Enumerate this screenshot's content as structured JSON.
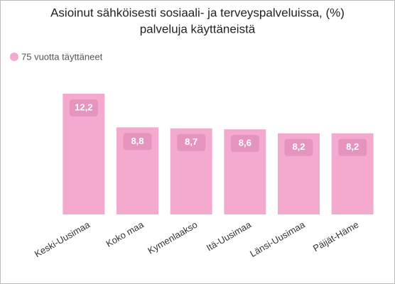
{
  "chart_data": {
    "type": "bar",
    "title": [
      "Asioinut sähköisesti sosiaali- ja terveyspalveluissa, (%)",
      "palveluja käyttäneistä"
    ],
    "categories": [
      "Keski-Uusimaa",
      "Koko maa",
      "Kymenlaakso",
      "Itä-Uusimaa",
      "Länsi-Uusimaa",
      "Päijät-Häme"
    ],
    "series": [
      {
        "name": "75 vuotta täyttäneet",
        "color": "#f4a9cf",
        "values": [
          12.2,
          8.8,
          8.7,
          8.6,
          8.2,
          8.2
        ],
        "value_labels": [
          "12,2",
          "8,8",
          "8,7",
          "8,6",
          "8,2",
          "8,2"
        ]
      }
    ]
  }
}
